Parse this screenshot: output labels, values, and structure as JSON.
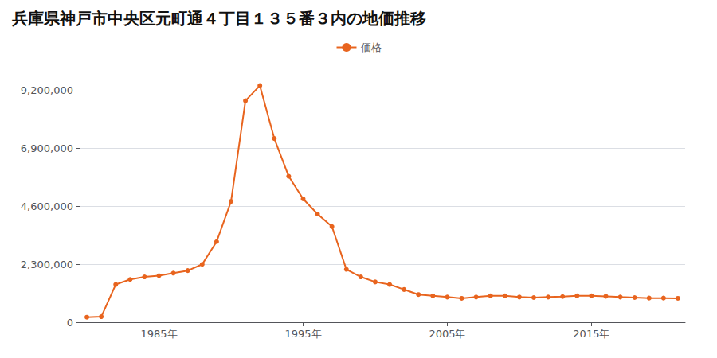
{
  "chart_data": {
    "type": "line",
    "title": "兵庫県神戸市中央区元町通４丁目１３５番３内の地価推移",
    "x": [
      1980,
      1981,
      1982,
      1983,
      1984,
      1985,
      1986,
      1987,
      1988,
      1989,
      1990,
      1991,
      1992,
      1993,
      1994,
      1995,
      1996,
      1997,
      1998,
      1999,
      2000,
      2001,
      2002,
      2003,
      2004,
      2005,
      2006,
      2007,
      2008,
      2009,
      2010,
      2011,
      2012,
      2013,
      2014,
      2015,
      2016,
      2017,
      2018,
      2019,
      2020,
      2021
    ],
    "series": [
      {
        "name": "価格",
        "color": "#e8641e",
        "marker": "circle",
        "values": [
          200000,
          220000,
          1500000,
          1700000,
          1800000,
          1850000,
          1950000,
          2050000,
          2300000,
          3200000,
          4800000,
          8800000,
          9400000,
          7300000,
          5800000,
          4900000,
          4300000,
          3800000,
          2100000,
          1800000,
          1600000,
          1500000,
          1300000,
          1100000,
          1050000,
          1000000,
          950000,
          1000000,
          1050000,
          1050000,
          1000000,
          980000,
          1000000,
          1020000,
          1050000,
          1050000,
          1030000,
          1000000,
          980000,
          960000,
          960000,
          950000
        ]
      }
    ],
    "xlim": [
      1979.5,
      2021.5
    ],
    "xticks": [
      {
        "value": 1985,
        "label": "1985年"
      },
      {
        "value": 1995,
        "label": "1995年"
      },
      {
        "value": 2005,
        "label": "2005年"
      },
      {
        "value": 2015,
        "label": "2015年"
      }
    ],
    "ylim": [
      0,
      9800000
    ],
    "yticks": [
      0,
      {
        "value": 2300000,
        "label": "2,300,000"
      },
      {
        "value": 4600000,
        "label": "4,600,000"
      },
      {
        "value": 6900000,
        "label": "6,900,000"
      },
      {
        "value": 9200000,
        "label": "9,200,000"
      }
    ],
    "grid": true,
    "legend": "top"
  }
}
